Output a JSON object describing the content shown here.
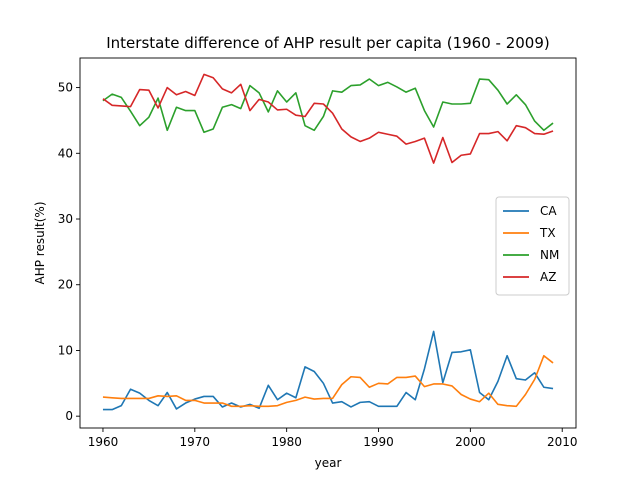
{
  "chart_data": {
    "type": "line",
    "title": "Interstate difference of AHP result per capita (1960 - 2009)",
    "xlabel": "year",
    "ylabel": "AHP result(%)",
    "xlim": [
      1957.5,
      2011.5
    ],
    "ylim": [
      -1.8,
      54.5
    ],
    "xticks": [
      1960,
      1970,
      1980,
      1990,
      2000,
      2010
    ],
    "yticks": [
      0,
      10,
      20,
      30,
      40,
      50
    ],
    "grid": false,
    "legend_position": "center-right",
    "x": [
      1960,
      1961,
      1962,
      1963,
      1964,
      1965,
      1966,
      1967,
      1968,
      1969,
      1970,
      1971,
      1972,
      1973,
      1974,
      1975,
      1976,
      1977,
      1978,
      1979,
      1980,
      1981,
      1982,
      1983,
      1984,
      1985,
      1986,
      1987,
      1988,
      1989,
      1990,
      1991,
      1992,
      1993,
      1994,
      1995,
      1996,
      1997,
      1998,
      1999,
      2000,
      2001,
      2002,
      2003,
      2004,
      2005,
      2006,
      2007,
      2008,
      2009
    ],
    "series": [
      {
        "name": "CA",
        "color": "#1f77b4",
        "values": [
          1.0,
          1.0,
          1.6,
          4.1,
          3.5,
          2.4,
          1.6,
          3.6,
          1.1,
          2.0,
          2.6,
          3.0,
          3.0,
          1.4,
          2.0,
          1.4,
          1.8,
          1.2,
          4.7,
          2.5,
          3.5,
          2.8,
          7.5,
          6.8,
          5.0,
          2.0,
          2.2,
          1.4,
          2.1,
          2.2,
          1.5,
          1.5,
          1.5,
          3.6,
          2.5,
          7.2,
          12.9,
          5.1,
          9.7,
          9.8,
          10.1,
          3.6,
          2.5,
          5.3,
          9.2,
          5.7,
          5.5,
          6.6,
          4.4,
          4.2
        ]
      },
      {
        "name": "TX",
        "color": "#ff7f0e",
        "values": [
          2.9,
          2.8,
          2.7,
          2.7,
          2.7,
          2.7,
          3.1,
          3.0,
          3.1,
          2.4,
          2.4,
          2.0,
          2.0,
          2.0,
          1.5,
          1.5,
          1.6,
          1.5,
          1.5,
          1.6,
          2.1,
          2.4,
          2.9,
          2.6,
          2.7,
          2.7,
          4.8,
          6.0,
          5.9,
          4.4,
          5.0,
          4.9,
          5.9,
          5.9,
          6.1,
          4.5,
          4.9,
          4.9,
          4.6,
          3.3,
          2.6,
          2.2,
          3.5,
          1.8,
          1.6,
          1.5,
          3.3,
          5.6,
          9.2,
          8.1
        ]
      },
      {
        "name": "NM",
        "color": "#2ca02c",
        "values": [
          48.0,
          49.0,
          48.5,
          46.4,
          44.2,
          45.5,
          48.4,
          43.5,
          47.0,
          46.5,
          46.5,
          43.2,
          43.7,
          47.0,
          47.4,
          46.8,
          50.3,
          49.2,
          46.3,
          49.5,
          47.8,
          49.2,
          44.2,
          43.5,
          45.6,
          49.5,
          49.3,
          50.3,
          50.4,
          51.3,
          50.3,
          50.8,
          50.1,
          49.3,
          49.9,
          46.5,
          44.0,
          47.8,
          47.5,
          47.5,
          47.6,
          51.3,
          51.2,
          49.6,
          47.5,
          48.9,
          47.4,
          44.9,
          43.5,
          44.6
        ]
      },
      {
        "name": "AZ",
        "color": "#d62728",
        "values": [
          48.3,
          47.3,
          47.2,
          47.1,
          49.7,
          49.6,
          46.9,
          50.0,
          48.9,
          49.4,
          48.8,
          52.0,
          51.5,
          49.8,
          49.2,
          50.5,
          46.5,
          48.2,
          47.8,
          46.6,
          46.7,
          45.8,
          45.6,
          47.6,
          47.5,
          46.1,
          43.7,
          42.5,
          41.8,
          42.3,
          43.2,
          42.9,
          42.6,
          41.4,
          41.8,
          42.3,
          38.5,
          42.4,
          38.6,
          39.7,
          39.9,
          43.0,
          43.0,
          43.3,
          41.9,
          44.2,
          43.9,
          43.0,
          42.9,
          43.4
        ]
      }
    ]
  }
}
